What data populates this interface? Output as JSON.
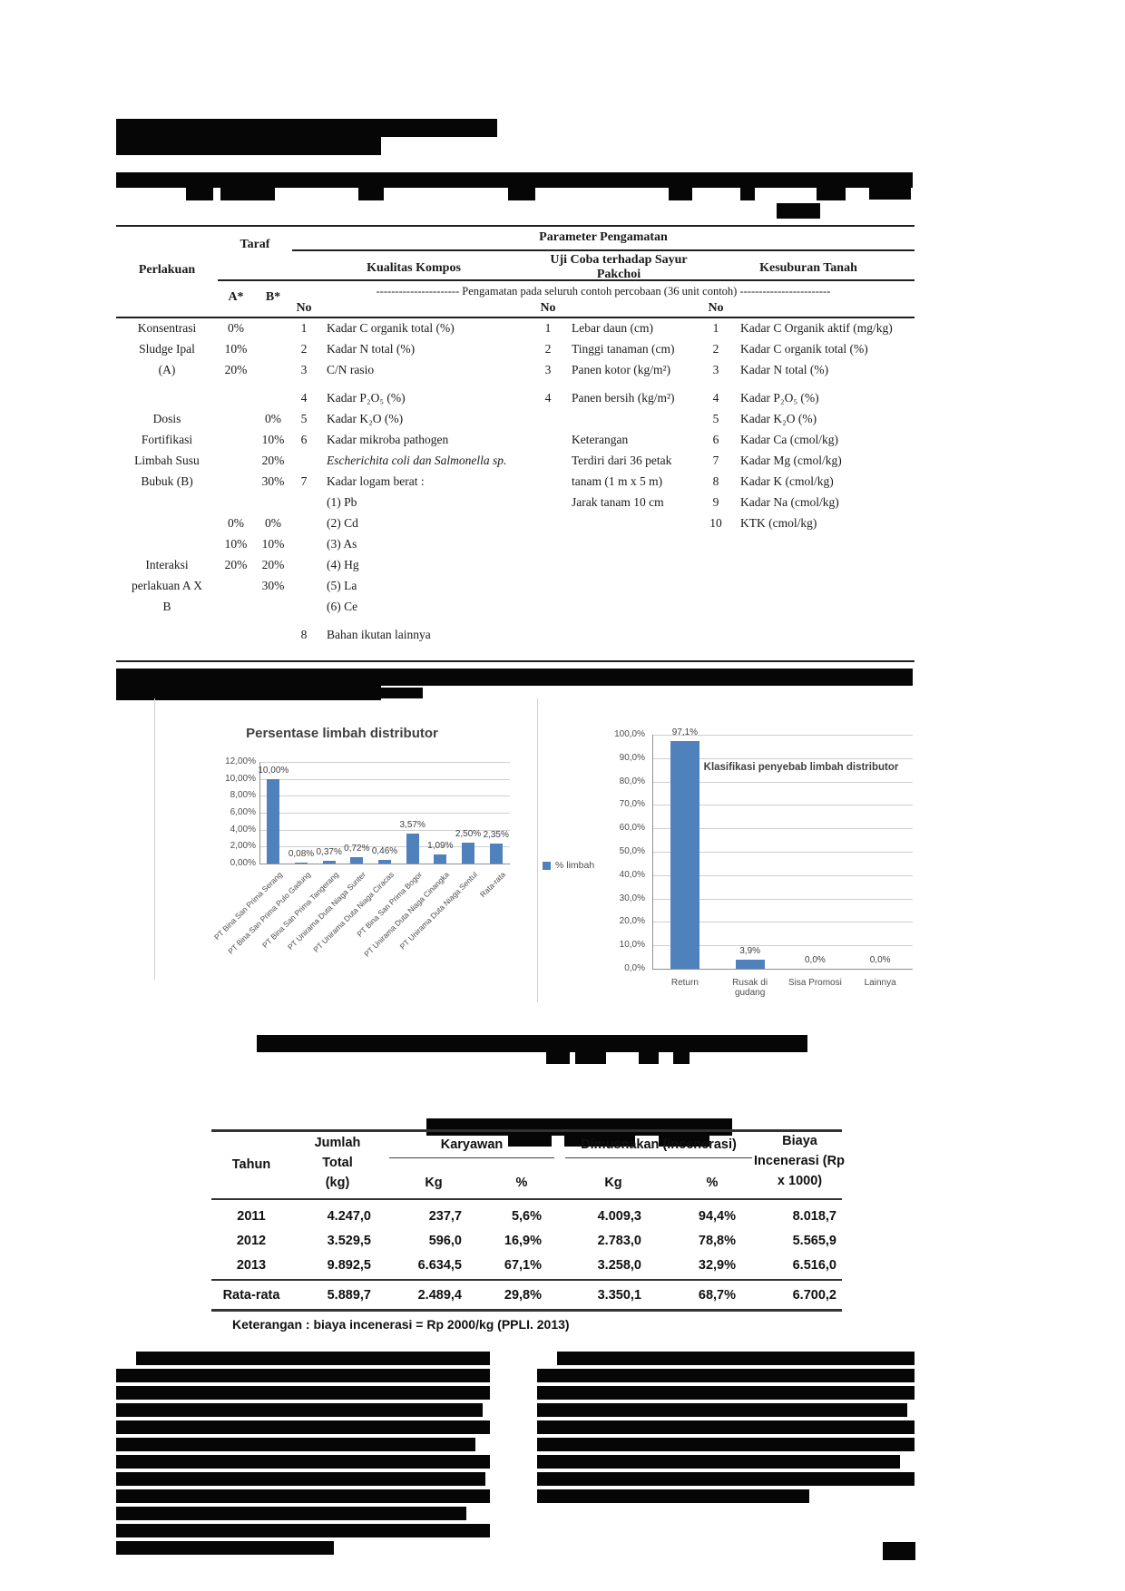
{
  "param_table": {
    "header": {
      "parameter_pengamatan": "Parameter Pengamatan",
      "perlakuan": "Perlakuan",
      "taraf": "Taraf",
      "kualitas_kompos": "Kualitas Kompos",
      "uji_coba": "Uji Coba terhadap Sayur Pakchoi",
      "kesuburan_tanah": "Kesuburan Tanah",
      "a": "A*",
      "b": "B*",
      "no": "No",
      "span_note": "---------------------- Pengamatan pada seluruh contoh percobaan (36 unit contoh) ------------------------"
    },
    "rows": [
      {
        "p": "Konsentrasi",
        "a": "0%",
        "b": "",
        "n1": "1",
        "k": "Kadar C organik total (%)",
        "n2": "1",
        "u": "Lebar daun (cm)",
        "n3": "1",
        "s": "Kadar C Organik aktif (mg/kg)"
      },
      {
        "p": "Sludge Ipal",
        "a": "10%",
        "b": "",
        "n1": "2",
        "k": "Kadar N total  (%)",
        "n2": "2",
        "u": "Tinggi tanaman (cm)",
        "n3": "2",
        "s": "Kadar C organik total (%)"
      },
      {
        "p": "(A)",
        "a": "20%",
        "b": "",
        "n1": "3",
        "k": "C/N rasio",
        "n2": "3",
        "u": "Panen kotor (kg/m²)",
        "n3": "3",
        "s": "Kadar N total  (%)"
      },
      {
        "gap": true,
        "p": "",
        "a": "",
        "b": "",
        "n1": "4",
        "k": "Kadar P₂O₅ (%)",
        "n2": "4",
        "u": "Panen bersih  (kg/m²)",
        "n3": "4",
        "s": "Kadar P₂O₅ (%)"
      },
      {
        "p": "Dosis",
        "a": "",
        "b": "0%",
        "n1": "5",
        "k": "Kadar K₂O (%)",
        "n2": "",
        "u": "",
        "n3": "5",
        "s": "Kadar K₂O (%)"
      },
      {
        "p": "Fortifikasi",
        "a": "",
        "b": "10%",
        "n1": "6",
        "k": "Kadar mikroba pathogen",
        "n2": "",
        "u": "Keterangan",
        "n3": "6",
        "s": "Kadar Ca (cmol/kg)"
      },
      {
        "p": "Limbah Susu",
        "a": "",
        "b": "20%",
        "n1": "",
        "k": "Escherichita coli dan Salmonella sp.",
        "ital": true,
        "n2": "",
        "u": "Terdiri dari 36 petak",
        "n3": "7",
        "s": "Kadar Mg (cmol/kg)"
      },
      {
        "p": "Bubuk (B)",
        "a": "",
        "b": "30%",
        "n1": "7",
        "k": "Kadar logam berat  :",
        "n2": "",
        "u": "tanam (1 m x 5 m)",
        "n3": "8",
        "s": "Kadar K (cmol/kg)"
      },
      {
        "p": "",
        "a": "",
        "b": "",
        "n1": "",
        "k": "(1) Pb",
        "n2": "",
        "u": "Jarak tanam 10 cm",
        "n3": "9",
        "s": "Kadar Na (cmol/kg)"
      },
      {
        "p": "",
        "a": "0%",
        "b": "0%",
        "n1": "",
        "k": "(2) Cd",
        "n2": "",
        "u": "",
        "n3": "10",
        "s": "KTK (cmol/kg)"
      },
      {
        "p": "",
        "a": "10%",
        "b": "10%",
        "n1": "",
        "k": "(3) As",
        "n2": "",
        "u": "",
        "n3": "",
        "s": ""
      },
      {
        "p": "Interaksi",
        "a": "20%",
        "b": "20%",
        "n1": "",
        "k": "(4) Hg",
        "n2": "",
        "u": "",
        "n3": "",
        "s": ""
      },
      {
        "p": "perlakuan A X",
        "a": "",
        "b": "30%",
        "n1": "",
        "k": "(5) La",
        "n2": "",
        "u": "",
        "n3": "",
        "s": ""
      },
      {
        "p": "B",
        "a": "",
        "b": "",
        "n1": "",
        "k": "(6) Ce",
        "n2": "",
        "u": "",
        "n3": "",
        "s": ""
      },
      {
        "gap": true,
        "p": "",
        "a": "",
        "b": "",
        "n1": "8",
        "k": "Bahan  ikutan lainnya",
        "n2": "",
        "u": "",
        "n3": "",
        "s": ""
      }
    ]
  },
  "chart_data": [
    {
      "type": "bar",
      "title": "Persentase limbah distributor",
      "legend": "% limbah",
      "legend_position": "right",
      "categories": [
        "PT Bina San Prima Serang",
        "PT Bina San Prima Pulo Gadung",
        "PT Bina San Prima Tangerang",
        "PT Unirama Duta Niaga Sunter",
        "PT Unirama Duta Niaga Ciracas",
        "PT Bina San Prima Bogor",
        "PT Unirama Duta Niaga Cinangka",
        "PT Unirama Duta Niaga Sentul",
        "Rata-rata"
      ],
      "values": [
        10.0,
        0.08,
        0.37,
        0.72,
        0.46,
        3.57,
        1.09,
        2.5,
        2.35
      ],
      "data_labels": [
        "10,00%",
        "0,08%",
        "0,37%",
        "0,72%",
        "0,46%",
        "3,57%",
        "1,09%",
        "2,50%",
        "2,35%"
      ],
      "y_ticks": [
        "12,00%",
        "10,00%",
        "8,00%",
        "6,00%",
        "4,00%",
        "2,00%",
        "0,00%"
      ],
      "ylim": [
        0,
        12
      ],
      "xlabel": "",
      "ylabel": "",
      "grid": true,
      "bar_color": "#4f81bd"
    },
    {
      "type": "bar",
      "title": "Klasifikasi penyebab limbah distributor",
      "categories": [
        "Return",
        "Rusak di gudang",
        "Sisa Promosi",
        "Lainnya"
      ],
      "values": [
        97.1,
        3.9,
        0.0,
        0.0
      ],
      "data_labels": [
        "97,1%",
        "3,9%",
        "0,0%",
        "0,0%"
      ],
      "y_ticks": [
        "100,0%",
        "90,0%",
        "80,0%",
        "70,0%",
        "60,0%",
        "50,0%",
        "40,0%",
        "30,0%",
        "20,0%",
        "10,0%",
        "0,0%"
      ],
      "ylim": [
        0,
        100
      ],
      "xlabel": "",
      "ylabel": "",
      "grid": true,
      "bar_color": "#4f81bd"
    }
  ],
  "limbah_table": {
    "headers": {
      "tahun": "Tahun",
      "jumlah_l1": "Jumlah",
      "jumlah_l2": "Total",
      "jumlah_l3": "(kg)",
      "karyawan": "Karyawan",
      "dimusnakan": "Dimusnakan (incenerasi)",
      "kg": "Kg",
      "pct": "%",
      "biaya_l1": "Biaya",
      "biaya_l2": "Incenerasi (Rp",
      "biaya_l3": "x 1000)"
    },
    "rows": [
      [
        "2011",
        "4.247,0",
        "237,7",
        "5,6%",
        "4.009,3",
        "94,4%",
        "8.018,7"
      ],
      [
        "2012",
        "3.529,5",
        "596,0",
        "16,9%",
        "2.783,0",
        "78,8%",
        "5.565,9"
      ],
      [
        "2013",
        "9.892,5",
        "6.634,5",
        "67,1%",
        "3.258,0",
        "32,9%",
        "6.516,0"
      ],
      [
        "Rata-rata",
        "5.889,7",
        "2.489,4",
        "29,8%",
        "3.350,1",
        "68,7%",
        "6.700,2"
      ]
    ],
    "footnote": "Keterangan : biaya incenerasi =  Rp 2000/kg (PPLI. 2013)"
  }
}
